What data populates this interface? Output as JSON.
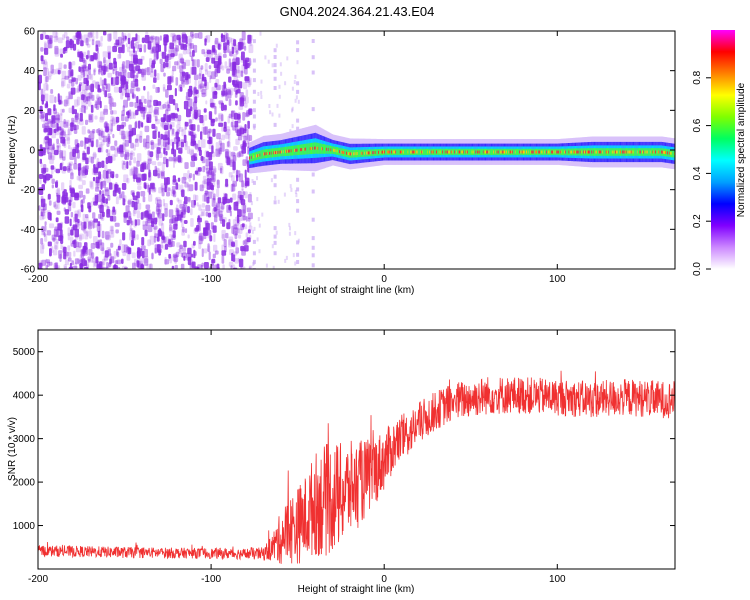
{
  "title": "GN04.2024.364.21.43.E04",
  "colors": {
    "snr_line": "#f03030",
    "scatter_mark": "#8a2be2",
    "ridge_center": "#ff2a2a"
  },
  "colorbar": {
    "label": "Normalized spectral amplitude",
    "ticks": [
      "0.0",
      "0.2",
      "0.4",
      "0.6",
      "0.8"
    ],
    "tick_values": [
      0.0,
      0.2,
      0.4,
      0.6,
      0.8
    ],
    "range": [
      0,
      1
    ],
    "colors": [
      "#ffffff",
      "#cc88ff",
      "#8000ff",
      "#0000ff",
      "#00a0ff",
      "#00ffff",
      "#00ff60",
      "#80ff00",
      "#ffff00",
      "#ff8000",
      "#ff0000",
      "#ff00ff"
    ]
  },
  "chart_data": [
    {
      "type": "heatmap",
      "xlabel": "Height of straight line (km)",
      "ylabel": "Frequency (Hz)",
      "xlim": [
        -200,
        168
      ],
      "ylim": [
        -60,
        60
      ],
      "xticks": [
        -200,
        -100,
        0,
        100
      ],
      "yticks": [
        -60,
        -40,
        -20,
        0,
        20,
        40,
        60
      ],
      "grid": false,
      "regions": [
        {
          "name": "noise",
          "x_range": [
            -200,
            -78
          ],
          "f_range": [
            -60,
            60
          ],
          "amplitude": 0.15
        },
        {
          "name": "sparse_streaks",
          "x": [
            -75,
            -63,
            -50,
            -41
          ],
          "amplitude": 0.05
        },
        {
          "name": "signal_ridge",
          "x_range": [
            -78,
            168
          ],
          "center_freq": -1,
          "amplitude_peak": 0.9
        }
      ],
      "ridge": {
        "x": [
          -78,
          -70,
          -60,
          -50,
          -40,
          -30,
          -20,
          0,
          20,
          40,
          60,
          80,
          100,
          120,
          140,
          160,
          168
        ],
        "freq": [
          -4,
          -2,
          -1,
          0,
          1,
          0,
          -2,
          -1,
          -1,
          -1,
          -1,
          -1,
          -1,
          -1,
          -1,
          -1,
          -2
        ],
        "width": [
          6,
          7,
          7,
          8,
          9,
          6,
          6,
          5,
          5,
          5,
          5,
          5,
          5,
          6,
          6,
          6,
          6
        ]
      }
    },
    {
      "type": "line",
      "xlabel": "Height of straight line (km)",
      "ylabel": "SNR (10 * v/v)",
      "xlim": [
        -200,
        168
      ],
      "ylim": [
        0,
        5500
      ],
      "xticks": [
        -200,
        -100,
        0,
        100
      ],
      "yticks": [
        1000,
        2000,
        3000,
        4000,
        5000
      ],
      "grid": false,
      "series": [
        {
          "x": [
            -200,
            -150,
            -100,
            -80,
            -70,
            -65,
            -60,
            -55,
            -50,
            -45,
            -40,
            -35,
            -30,
            -25,
            -20,
            -15,
            -10,
            -5,
            0,
            5,
            10,
            15,
            20,
            25,
            30,
            40,
            60,
            80,
            100,
            120,
            140,
            160,
            168
          ],
          "y_mean": [
            420,
            380,
            360,
            350,
            350,
            480,
            700,
            900,
            1000,
            1200,
            1500,
            1550,
            1650,
            1700,
            1850,
            1950,
            2100,
            2300,
            2500,
            2800,
            3000,
            3150,
            3350,
            3500,
            3650,
            3850,
            4000,
            4000,
            3950,
            3900,
            3950,
            3900,
            3900
          ],
          "y_spread": [
            130,
            130,
            120,
            130,
            150,
            300,
            600,
            800,
            900,
            1000,
            1200,
            1300,
            1300,
            1200,
            1100,
            1000,
            900,
            800,
            700,
            600,
            550,
            500,
            500,
            480,
            450,
            450,
            450,
            430,
            420,
            430,
            430,
            430,
            430
          ]
        }
      ]
    }
  ]
}
